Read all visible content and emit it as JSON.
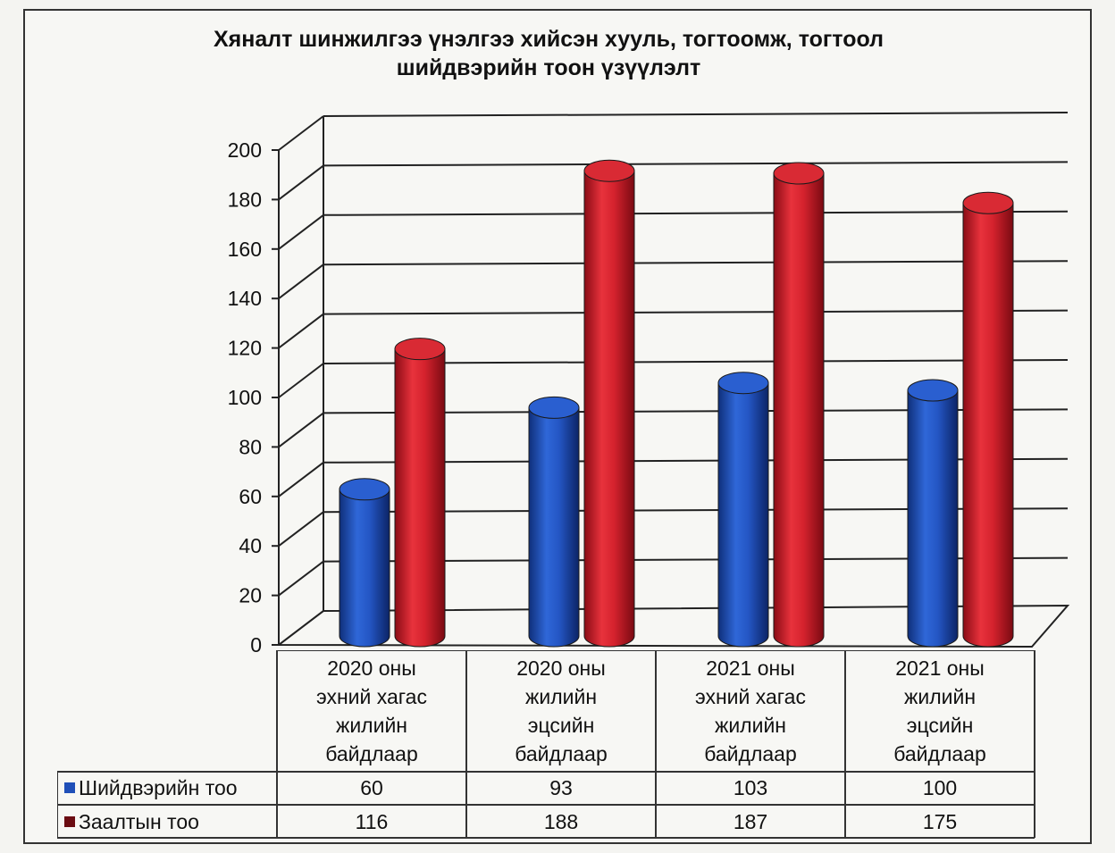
{
  "chart_data": {
    "type": "bar",
    "title": "Хяналт шинжилгээ үнэлгээ хийсэн хууль, тогтоомж, тогтоол шийдвэрийн тоон үзүүлэлт",
    "title_lines": [
      "Хяналт шинжилгээ үнэлгээ хийсэн хууль, тогтоомж, тогтоол",
      "шийдвэрийн тоон үзүүлэлт"
    ],
    "categories": [
      "2020 оны эхний хагас жилийн байдлаар",
      "2020 оны жилийн эцсийн байдлаар",
      "2021 оны эхний хагас жилийн байдлаар",
      "2021 оны жилийн эцсийн байдлаар"
    ],
    "category_lines": [
      [
        "2020 оны",
        "эхний хагас",
        "жилийн",
        "байдлаар"
      ],
      [
        "2020 оны",
        "жилийн",
        "эцсийн",
        "байдлаар"
      ],
      [
        "2021 оны",
        "эхний хагас",
        "жилийн",
        "байдлаар"
      ],
      [
        "2021 оны",
        "жилийн",
        "эцсийн",
        "байдлаар"
      ]
    ],
    "series": [
      {
        "name": "Шийдвэрийн тоо",
        "values": [
          60,
          93,
          103,
          100
        ],
        "color": "#1f4fb8"
      },
      {
        "name": "Заалтын тоо",
        "values": [
          116,
          188,
          187,
          175
        ],
        "color": "#cf1f2a"
      }
    ],
    "value_labels": [
      [
        "60",
        "93",
        "103",
        "100"
      ],
      [
        "116",
        "188",
        "187",
        "175"
      ]
    ],
    "yticks": [
      "0",
      "20",
      "40",
      "60",
      "80",
      "100",
      "120",
      "140",
      "160",
      "180",
      "200"
    ],
    "ylim": [
      0,
      200
    ],
    "grid": true,
    "style": "3d-cylinder",
    "legend": "data-table"
  }
}
